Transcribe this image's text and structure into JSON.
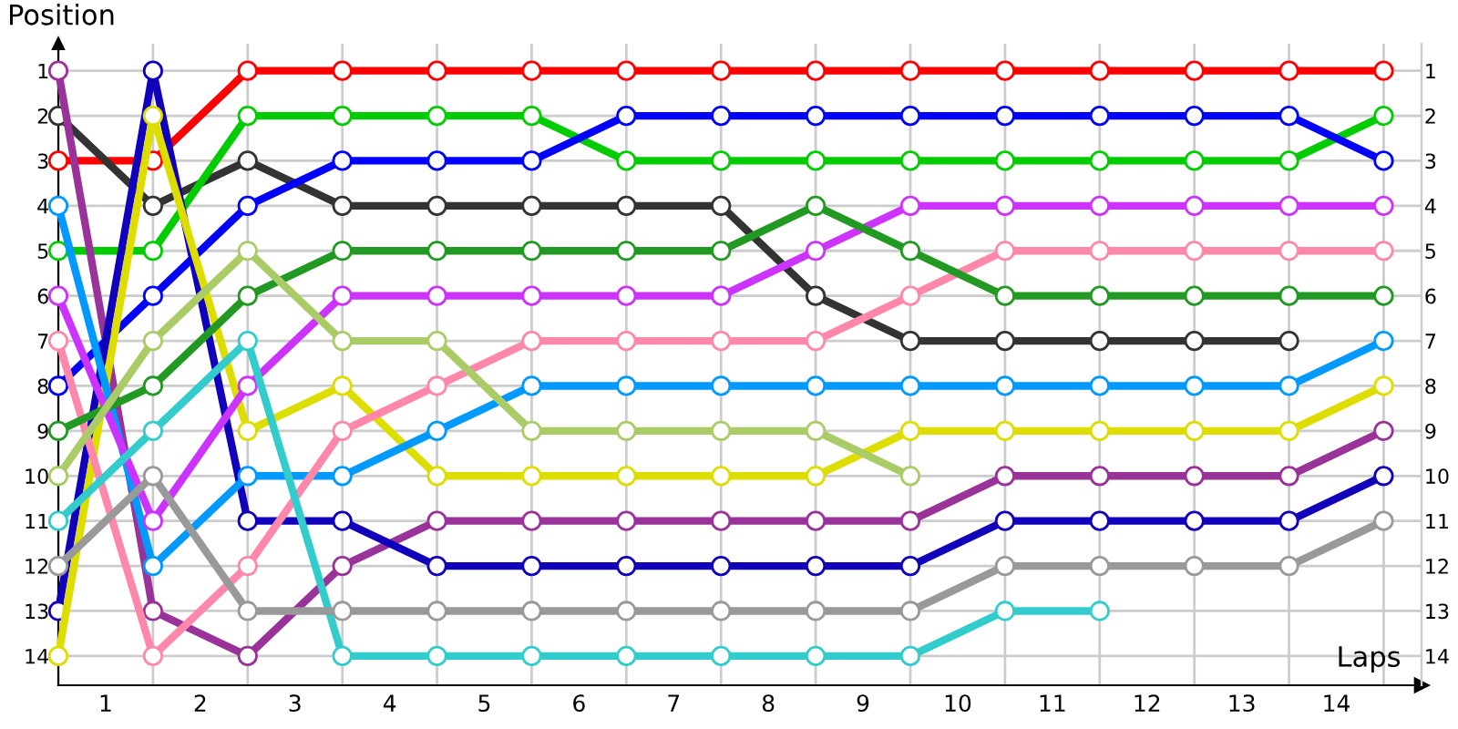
{
  "chart_data": {
    "type": "line",
    "ylabel": "Position",
    "xlabel": "Laps",
    "x": [
      0,
      1,
      2,
      3,
      4,
      5,
      6,
      7,
      8,
      9,
      10,
      11,
      12,
      13,
      14
    ],
    "xlim": [
      0,
      14.4
    ],
    "xticks": [
      {
        "value": 0.5,
        "label": "1"
      },
      {
        "value": 1.5,
        "label": "2"
      },
      {
        "value": 2.5,
        "label": "3"
      },
      {
        "value": 3.5,
        "label": "4"
      },
      {
        "value": 4.5,
        "label": "5"
      },
      {
        "value": 5.5,
        "label": "6"
      },
      {
        "value": 6.5,
        "label": "7"
      },
      {
        "value": 7.5,
        "label": "8"
      },
      {
        "value": 8.5,
        "label": "9"
      },
      {
        "value": 9.5,
        "label": "10"
      },
      {
        "value": 10.5,
        "label": "11"
      },
      {
        "value": 11.5,
        "label": "12"
      },
      {
        "value": 12.5,
        "label": "13"
      },
      {
        "value": 13.5,
        "label": "14"
      }
    ],
    "ylim": [
      14.65,
      0.4
    ],
    "yticks": [
      1,
      2,
      3,
      4,
      5,
      6,
      7,
      8,
      9,
      10,
      11,
      12,
      13,
      14
    ],
    "y2lim": [
      14.65,
      0.4
    ],
    "y2ticks": [
      1,
      2,
      3,
      4,
      5,
      6,
      7,
      8,
      9,
      10,
      11,
      12,
      13,
      14
    ],
    "grid": true,
    "marker": "circle",
    "line_style": "solid",
    "series": [
      {
        "color": "#ff0000",
        "values": [
          3,
          3,
          1,
          1,
          1,
          1,
          1,
          1,
          1,
          1,
          1,
          1,
          1,
          1,
          1
        ]
      },
      {
        "color": "#333333",
        "values": [
          2,
          4,
          3,
          4,
          4,
          4,
          4,
          4,
          6,
          7,
          7,
          7,
          7,
          7,
          null
        ]
      },
      {
        "color": "#00cc00",
        "values": [
          5,
          5,
          2,
          2,
          2,
          2,
          3,
          3,
          3,
          3,
          3,
          3,
          3,
          3,
          2
        ]
      },
      {
        "color": "#0000ff",
        "values": [
          8,
          6,
          4,
          3,
          3,
          3,
          2,
          2,
          2,
          2,
          2,
          2,
          2,
          2,
          3
        ]
      },
      {
        "color": "#993399",
        "values": [
          1,
          13,
          14,
          12,
          11,
          11,
          11,
          11,
          11,
          11,
          10,
          10,
          10,
          10,
          9
        ]
      },
      {
        "color": "#1100bb",
        "values": [
          13,
          1,
          11,
          11,
          12,
          12,
          12,
          12,
          12,
          12,
          11,
          11,
          11,
          11,
          10
        ]
      },
      {
        "color": "#dddd00",
        "values": [
          14,
          2,
          9,
          8,
          10,
          10,
          10,
          10,
          10,
          9,
          9,
          9,
          9,
          9,
          8
        ]
      },
      {
        "color": "#0099ff",
        "values": [
          4,
          12,
          10,
          10,
          9,
          8,
          8,
          8,
          8,
          8,
          8,
          8,
          8,
          8,
          7
        ]
      },
      {
        "color": "#cc33ff",
        "values": [
          6,
          11,
          8,
          6,
          6,
          6,
          6,
          6,
          5,
          4,
          4,
          4,
          4,
          4,
          4
        ]
      },
      {
        "color": "#ff88aa",
        "values": [
          7,
          14,
          12,
          9,
          8,
          7,
          7,
          7,
          7,
          6,
          5,
          5,
          5,
          5,
          5
        ]
      },
      {
        "color": "#229922",
        "values": [
          9,
          8,
          6,
          5,
          5,
          5,
          5,
          5,
          4,
          5,
          6,
          6,
          6,
          6,
          6
        ]
      },
      {
        "color": "#aacc66",
        "values": [
          10,
          7,
          5,
          7,
          7,
          9,
          9,
          9,
          9,
          10,
          null,
          null,
          null,
          null,
          null
        ]
      },
      {
        "color": "#33cccc",
        "values": [
          11,
          9,
          7,
          14,
          14,
          14,
          14,
          14,
          14,
          14,
          13,
          13,
          null,
          null,
          null
        ]
      },
      {
        "color": "#999999",
        "values": [
          12,
          10,
          13,
          13,
          13,
          13,
          13,
          13,
          13,
          13,
          12,
          12,
          12,
          12,
          11
        ]
      }
    ]
  }
}
